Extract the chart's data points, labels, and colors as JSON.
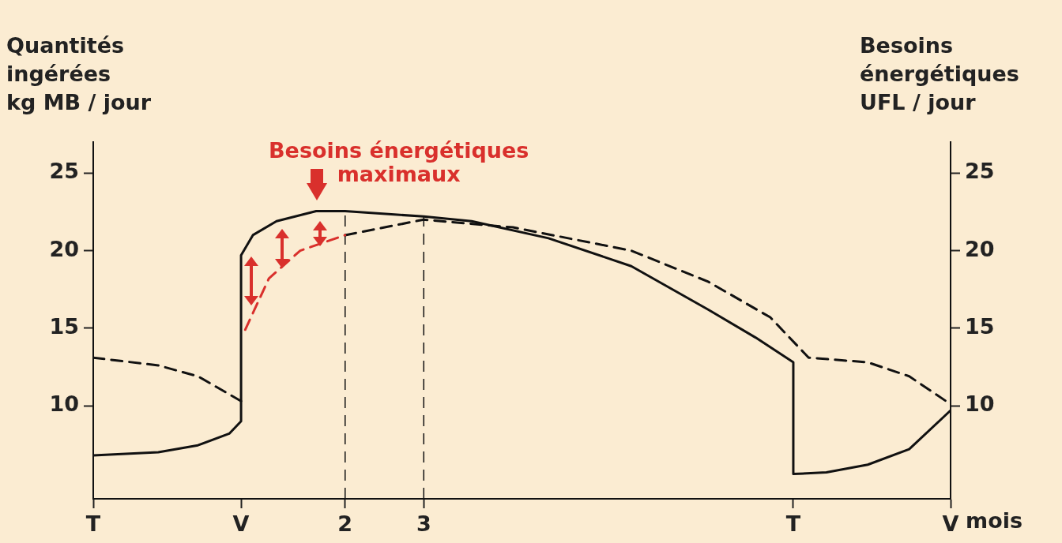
{
  "chart_data": {
    "type": "line",
    "xlabel": "mois",
    "ylabel": "Quantités\ningérées\nkg MB / jour",
    "y2label": "Besoins\nénergétiques\nUFL / jour",
    "annotations": [
      "Besoins énergétiques\nmaximaux"
    ],
    "series": [
      {
        "color": "#111111",
        "line_style": "solid",
        "x": [
          -2.5,
          -1.4,
          -0.73,
          -0.2,
          0,
          0,
          0.2,
          0.6,
          1.27,
          1.76,
          3.09,
          3.9,
          5.2,
          6.6,
          7.9,
          8.7,
          9.34,
          9.34,
          9.9,
          10.6,
          11.3,
          12
        ],
        "values": [
          6.8,
          7.0,
          7.45,
          8.2,
          9.0,
          19.7,
          21.0,
          21.9,
          22.55,
          22.55,
          22.2,
          21.9,
          20.8,
          19.0,
          16.2,
          14.4,
          12.8,
          5.6,
          5.7,
          6.2,
          7.2,
          9.7
        ]
      },
      {
        "color": "#111111",
        "line_style": "dashed",
        "x": [
          -2.5,
          -1.4,
          -0.73,
          0
        ],
        "values": [
          13.1,
          12.6,
          11.9,
          10.3
        ]
      },
      {
        "color": "#d9302c",
        "line_style": "dashed",
        "x": [
          0.07,
          0.47,
          1.0,
          1.76
        ],
        "values": [
          14.9,
          18.2,
          20.0,
          21.0
        ]
      },
      {
        "color": "#111111",
        "line_style": "dashed",
        "x": [
          1.76,
          3.09,
          4.6,
          6.6,
          7.9,
          8.95,
          9.6,
          10.6,
          11.3,
          12
        ],
        "values": [
          21.0,
          22.0,
          21.5,
          20.0,
          18.0,
          15.7,
          13.1,
          12.8,
          11.9,
          10.1
        ]
      }
    ],
    "ref_lines": [
      {
        "axis": "x",
        "value": 1.76,
        "line_style": "dashed",
        "color": "#111111"
      },
      {
        "axis": "x",
        "value": 3.09,
        "line_style": "dashed",
        "color": "#111111"
      }
    ],
    "xlim": [
      -2.5,
      12
    ],
    "xticks": [
      {
        "value": -2.5,
        "label": "T"
      },
      {
        "value": 0,
        "label": "V"
      },
      {
        "value": 1.76,
        "label": "2"
      },
      {
        "value": 3.09,
        "label": "3"
      },
      {
        "value": 9.34,
        "label": "T"
      },
      {
        "value": 12,
        "label": "V"
      }
    ],
    "ylim": [
      4,
      27
    ],
    "yticks": [
      10,
      15,
      20,
      25
    ],
    "y2lim": [
      4,
      27
    ],
    "y2ticks": [
      10,
      15,
      20,
      25
    ],
    "grid": false,
    "legend": false,
    "marker": "none"
  }
}
